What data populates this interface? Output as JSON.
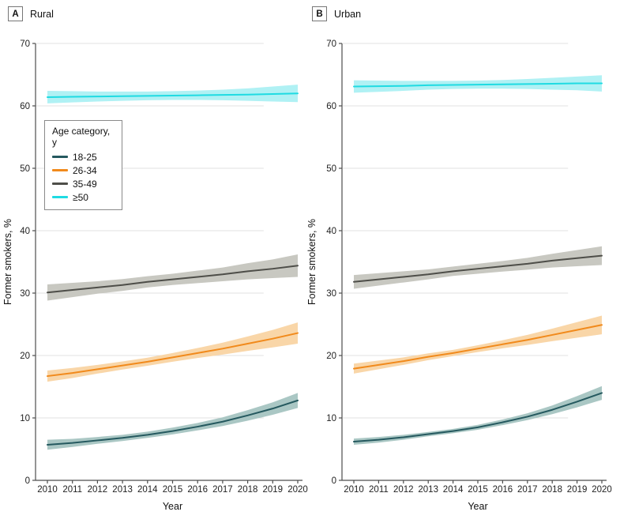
{
  "panels": [
    {
      "tag": "A",
      "title": "Rural"
    },
    {
      "tag": "B",
      "title": "Urban"
    }
  ],
  "legend": {
    "title": "Age category, y",
    "items": [
      {
        "label": "18-25",
        "color": "#25595f"
      },
      {
        "label": "26-34",
        "color": "#f18a1c"
      },
      {
        "label": "35-49",
        "color": "#4e4e49"
      },
      {
        "label": "≥50",
        "color": "#1fdbe2"
      }
    ]
  },
  "colors": {
    "axis": "#4d4d4d",
    "gridline": "#e2e2e2",
    "text": "#111111",
    "background": "#ffffff"
  },
  "chart_data": [
    {
      "type": "line",
      "panel": "A",
      "title": "Rural",
      "xlabel": "Year",
      "ylabel": "Former smokers, %",
      "x": [
        2010,
        2011,
        2012,
        2013,
        2014,
        2015,
        2016,
        2017,
        2018,
        2019,
        2020
      ],
      "ylim": [
        0,
        70
      ],
      "yticks": [
        0,
        10,
        20,
        30,
        40,
        50,
        60,
        70
      ],
      "grid": true,
      "legend_position": "upper-left",
      "series": [
        {
          "name": "18-25",
          "color": "#25595f",
          "band_color": "#aac7c4",
          "values": [
            5.7,
            6.0,
            6.4,
            6.8,
            7.3,
            7.9,
            8.6,
            9.4,
            10.4,
            11.5,
            12.8
          ],
          "ci_halfwidth": [
            0.8,
            0.65,
            0.55,
            0.5,
            0.5,
            0.55,
            0.6,
            0.7,
            0.85,
            1.0,
            1.2
          ]
        },
        {
          "name": "26-34",
          "color": "#f18a1c",
          "band_color": "#f9d6a8",
          "values": [
            16.7,
            17.2,
            17.8,
            18.4,
            19.0,
            19.7,
            20.4,
            21.1,
            21.9,
            22.7,
            23.6
          ],
          "ci_halfwidth": [
            0.9,
            0.8,
            0.7,
            0.65,
            0.65,
            0.7,
            0.8,
            0.95,
            1.15,
            1.4,
            1.7
          ]
        },
        {
          "name": "35-49",
          "color": "#4e4e49",
          "band_color": "#c8c8c1",
          "values": [
            30.1,
            30.5,
            30.9,
            31.3,
            31.8,
            32.2,
            32.6,
            33.0,
            33.5,
            33.9,
            34.4
          ],
          "ci_halfwidth": [
            1.3,
            1.15,
            1.0,
            0.95,
            0.9,
            0.9,
            1.0,
            1.1,
            1.3,
            1.5,
            1.8
          ]
        },
        {
          "name": "≥50",
          "color": "#1fdbe2",
          "band_color": "#b0f1f4",
          "values": [
            61.4,
            61.45,
            61.5,
            61.55,
            61.6,
            61.65,
            61.7,
            61.75,
            61.8,
            61.9,
            62.0
          ],
          "ci_halfwidth": [
            1.0,
            0.9,
            0.8,
            0.75,
            0.7,
            0.7,
            0.75,
            0.85,
            1.0,
            1.2,
            1.4
          ]
        }
      ]
    },
    {
      "type": "line",
      "panel": "B",
      "title": "Urban",
      "xlabel": "Year",
      "ylabel": "Former smokers, %",
      "x": [
        2010,
        2011,
        2012,
        2013,
        2014,
        2015,
        2016,
        2017,
        2018,
        2019,
        2020
      ],
      "ylim": [
        0,
        70
      ],
      "yticks": [
        0,
        10,
        20,
        30,
        40,
        50,
        60,
        70
      ],
      "grid": true,
      "series": [
        {
          "name": "18-25",
          "color": "#25595f",
          "band_color": "#aac7c4",
          "values": [
            6.2,
            6.5,
            6.9,
            7.4,
            7.9,
            8.5,
            9.3,
            10.2,
            11.3,
            12.6,
            14.0
          ],
          "ci_halfwidth": [
            0.5,
            0.45,
            0.4,
            0.35,
            0.35,
            0.4,
            0.45,
            0.55,
            0.7,
            0.9,
            1.1
          ]
        },
        {
          "name": "26-34",
          "color": "#f18a1c",
          "band_color": "#f9d6a8",
          "values": [
            17.9,
            18.5,
            19.1,
            19.8,
            20.4,
            21.1,
            21.8,
            22.5,
            23.3,
            24.1,
            24.9
          ],
          "ci_halfwidth": [
            0.8,
            0.7,
            0.6,
            0.55,
            0.5,
            0.55,
            0.65,
            0.8,
            1.0,
            1.25,
            1.5
          ]
        },
        {
          "name": "35-49",
          "color": "#4e4e49",
          "band_color": "#c8c8c1",
          "values": [
            31.8,
            32.2,
            32.6,
            33.0,
            33.5,
            33.9,
            34.3,
            34.7,
            35.2,
            35.6,
            36.0
          ],
          "ci_halfwidth": [
            1.1,
            1.0,
            0.9,
            0.8,
            0.75,
            0.8,
            0.85,
            0.95,
            1.1,
            1.3,
            1.5
          ]
        },
        {
          "name": "≥50",
          "color": "#1fdbe2",
          "band_color": "#b0f1f4",
          "values": [
            63.1,
            63.15,
            63.2,
            63.3,
            63.35,
            63.4,
            63.45,
            63.5,
            63.55,
            63.6,
            63.6
          ],
          "ci_halfwidth": [
            1.0,
            0.9,
            0.8,
            0.7,
            0.65,
            0.65,
            0.7,
            0.8,
            0.95,
            1.1,
            1.3
          ]
        }
      ]
    }
  ]
}
